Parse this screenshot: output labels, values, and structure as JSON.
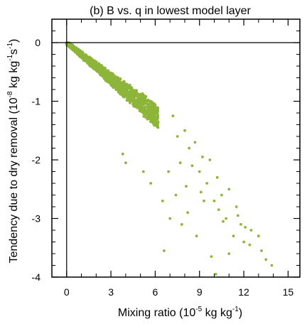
{
  "chart_data": {
    "type": "scatter",
    "title": "(b) B vs. q in lowest model layer",
    "xlabel": {
      "parts": [
        {
          "t": "Mixing ratio (10"
        },
        {
          "t": "-5",
          "sup": true
        },
        {
          "t": " kg kg"
        },
        {
          "t": "-1",
          "sup": true
        },
        {
          "t": ")"
        }
      ]
    },
    "ylabel": {
      "parts": [
        {
          "t": "Tendency due to dry removal (10"
        },
        {
          "t": "-8",
          "sup": true
        },
        {
          "t": " kg kg"
        },
        {
          "t": "-1",
          "sup": true
        },
        {
          "t": "s"
        },
        {
          "t": "-1",
          "sup": true
        },
        {
          "t": ")"
        }
      ]
    },
    "xlim": [
      -1,
      15.8
    ],
    "ylim": [
      -4,
      0.4
    ],
    "xticks": [
      0,
      3,
      6,
      9,
      12,
      15
    ],
    "xtick_labels": [
      "0",
      "3",
      "6",
      "9",
      "12",
      "15"
    ],
    "yticks": [
      0,
      -1,
      -2,
      -3,
      -4
    ],
    "ytick_labels": [
      "0",
      "-1",
      "-2",
      "-3",
      "-4"
    ],
    "zero_lines": true,
    "grid": false,
    "marker_color": "#8db53a",
    "generator": {
      "dense_count": 1800,
      "dense_x_max": 6.2,
      "slope_base": -0.205,
      "slope_spread": 0.06,
      "outliers": [
        [
          7.2,
          -1.25
        ],
        [
          7.5,
          -1.6
        ],
        [
          8.0,
          -1.5
        ],
        [
          8.3,
          -1.8
        ],
        [
          8.5,
          -2.1
        ],
        [
          8.7,
          -1.7
        ],
        [
          9.0,
          -2.2
        ],
        [
          9.2,
          -1.95
        ],
        [
          9.5,
          -2.4
        ],
        [
          9.7,
          -2.0
        ],
        [
          10.0,
          -2.7
        ],
        [
          10.2,
          -2.3
        ],
        [
          10.5,
          -2.6
        ],
        [
          10.8,
          -3.0
        ],
        [
          11.0,
          -2.5
        ],
        [
          11.3,
          -3.3
        ],
        [
          11.5,
          -2.8
        ],
        [
          11.8,
          -3.1
        ],
        [
          12.0,
          -3.4
        ],
        [
          12.5,
          -3.2
        ],
        [
          13.0,
          -3.3
        ],
        [
          13.2,
          -3.55
        ],
        [
          13.9,
          -3.8
        ],
        [
          10.1,
          -3.95
        ],
        [
          6.6,
          -3.55
        ],
        [
          7.0,
          -3.0
        ],
        [
          7.8,
          -3.1
        ],
        [
          8.2,
          -2.9
        ],
        [
          9.3,
          -2.7
        ],
        [
          9.8,
          -3.65
        ],
        [
          5.2,
          -2.2
        ],
        [
          4.0,
          -2.05
        ],
        [
          3.8,
          -1.9
        ],
        [
          5.7,
          -2.4
        ],
        [
          6.5,
          -2.7
        ],
        [
          7.4,
          -2.6
        ],
        [
          8.8,
          -3.3
        ],
        [
          11.0,
          -3.6
        ],
        [
          10.6,
          -3.05
        ],
        [
          12.4,
          -3.45
        ],
        [
          6.9,
          -2.2
        ],
        [
          7.7,
          -2.05
        ],
        [
          8.1,
          -2.45
        ],
        [
          9.1,
          -2.55
        ],
        [
          10.3,
          -2.85
        ],
        [
          11.6,
          -2.95
        ],
        [
          12.1,
          -3.15
        ],
        [
          13.5,
          -3.7
        ]
      ]
    }
  }
}
